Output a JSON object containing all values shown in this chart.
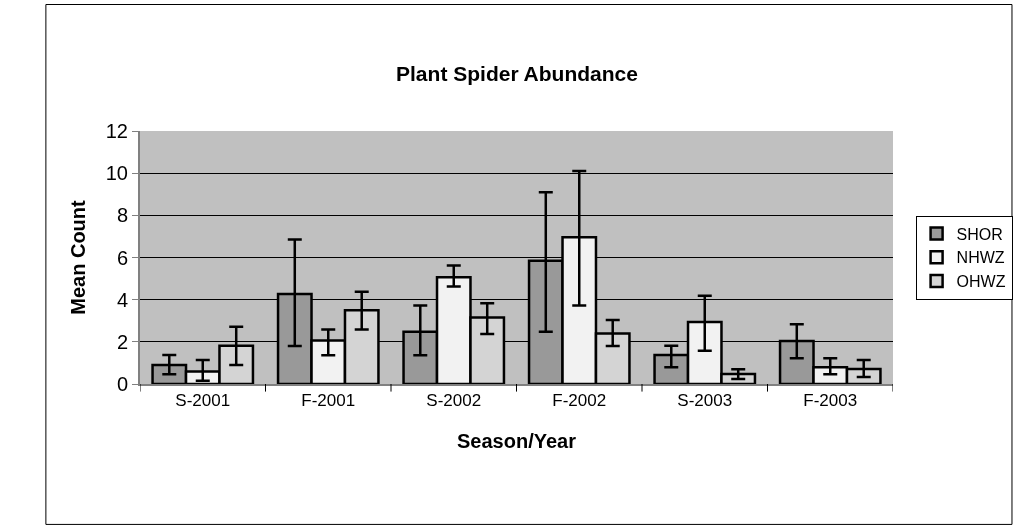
{
  "chart_data": {
    "type": "bar",
    "title": "Plant Spider Abundance",
    "xlabel": "Season/Year",
    "ylabel": "Mean Count",
    "categories": [
      "S-2001",
      "F-2001",
      "S-2002",
      "F-2002",
      "S-2003",
      "F-2003"
    ],
    "series": [
      {
        "name": "SHOR",
        "color": "#999999",
        "values": [
          0.9,
          4.27,
          2.48,
          5.85,
          1.38,
          2.04
        ],
        "errors": [
          [
            0.46,
            1.38
          ],
          [
            1.8,
            6.85
          ],
          [
            1.36,
            3.72
          ],
          [
            2.48,
            9.1
          ],
          [
            0.79,
            1.82
          ],
          [
            1.22,
            2.83
          ]
        ]
      },
      {
        "name": "NHWZ",
        "color": "#f2f2f2",
        "values": [
          0.59,
          2.06,
          5.06,
          6.96,
          2.94,
          0.79
        ],
        "errors": [
          [
            0.16,
            1.14
          ],
          [
            1.36,
            2.58
          ],
          [
            4.62,
            5.62
          ],
          [
            3.72,
            10.1
          ],
          [
            1.58,
            4.18
          ],
          [
            0.46,
            1.22
          ]
        ]
      },
      {
        "name": "OHWZ",
        "color": "#d4d4d4",
        "values": [
          1.82,
          3.5,
          3.16,
          2.39,
          0.47,
          0.71
        ],
        "errors": [
          [
            0.9,
            2.72
          ],
          [
            2.58,
            4.37
          ],
          [
            2.37,
            3.83
          ],
          [
            1.8,
            3.04
          ],
          [
            0.24,
            0.7
          ],
          [
            0.33,
            1.14
          ]
        ]
      }
    ],
    "ylim": [
      0,
      12
    ],
    "yticks": [
      0,
      2,
      4,
      6,
      8,
      10,
      12
    ],
    "grid": "y",
    "legend": "right"
  }
}
